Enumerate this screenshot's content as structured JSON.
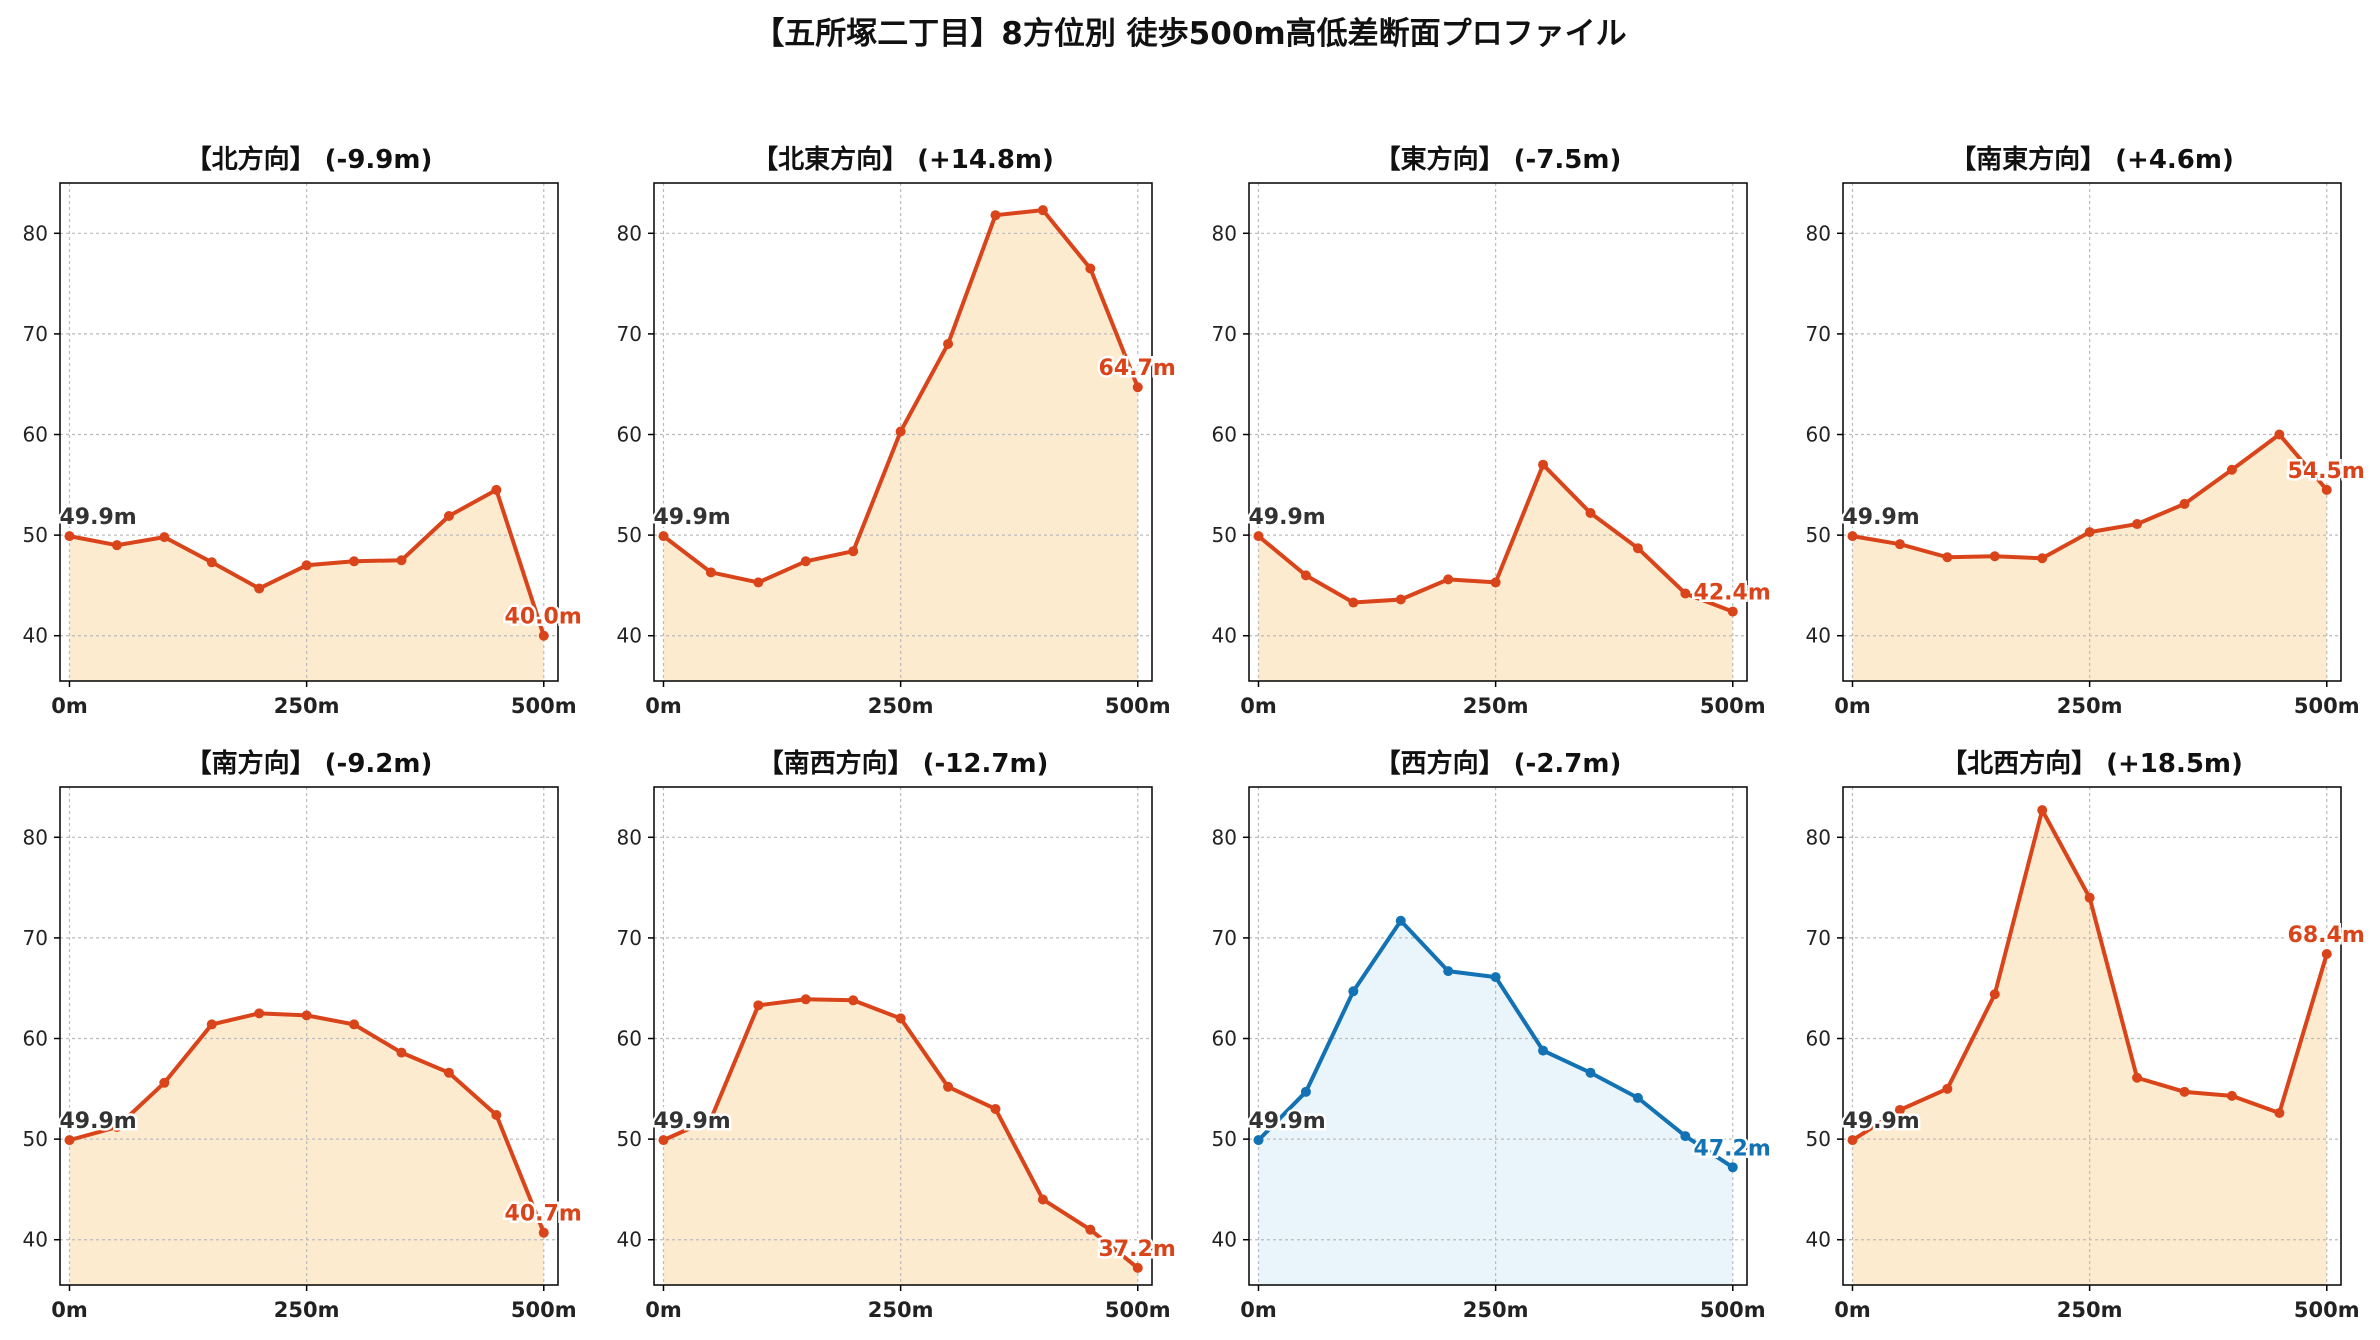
{
  "figure": {
    "title": "【五所塚二丁目】8方位別 徒歩500m高低差断面プロファイル"
  },
  "colors": {
    "uphill_line": "#D9441A",
    "uphill_fill": "#FDEBD0",
    "downhill_line": "#1272B3",
    "downhill_fill": "#E9F5FB",
    "grid": "#BBBBBB",
    "start_label": "#333333"
  },
  "chart_data": [
    {
      "type": "area",
      "title": "【北方向】 (-9.9m)",
      "x": [
        0,
        50,
        100,
        150,
        200,
        250,
        300,
        350,
        400,
        450,
        500
      ],
      "values": [
        49.9,
        49.0,
        49.8,
        47.3,
        44.7,
        47.0,
        47.4,
        47.5,
        51.9,
        54.5,
        40.0
      ],
      "start_label": "49.9m",
      "end_label": "40.0m",
      "color_scheme": "uphill",
      "xticks": [
        "0m",
        "250m",
        "500m"
      ],
      "yticks": [
        "40",
        "50",
        "60",
        "70",
        "80"
      ],
      "ylim": [
        35.5,
        85
      ],
      "xlim": [
        -10,
        515
      ],
      "grid": true
    },
    {
      "type": "area",
      "title": "【北東方向】 (+14.8m)",
      "x": [
        0,
        50,
        100,
        150,
        200,
        250,
        300,
        350,
        400,
        450,
        500
      ],
      "values": [
        49.9,
        46.3,
        45.3,
        47.4,
        48.4,
        60.3,
        69.0,
        81.8,
        82.3,
        76.5,
        64.7
      ],
      "start_label": "49.9m",
      "end_label": "64.7m",
      "color_scheme": "uphill",
      "xticks": [
        "0m",
        "250m",
        "500m"
      ],
      "yticks": [
        "40",
        "50",
        "60",
        "70",
        "80"
      ],
      "ylim": [
        35.5,
        85
      ],
      "xlim": [
        -10,
        515
      ],
      "grid": true
    },
    {
      "type": "area",
      "title": "【東方向】 (-7.5m)",
      "x": [
        0,
        50,
        100,
        150,
        200,
        250,
        300,
        350,
        400,
        450,
        500
      ],
      "values": [
        49.9,
        46.0,
        43.3,
        43.6,
        45.6,
        45.3,
        57.0,
        52.2,
        48.7,
        44.2,
        42.4
      ],
      "start_label": "49.9m",
      "end_label": "42.4m",
      "color_scheme": "uphill",
      "xticks": [
        "0m",
        "250m",
        "500m"
      ],
      "yticks": [
        "40",
        "50",
        "60",
        "70",
        "80"
      ],
      "ylim": [
        35.5,
        85
      ],
      "xlim": [
        -10,
        515
      ],
      "grid": true
    },
    {
      "type": "area",
      "title": "【南東方向】 (+4.6m)",
      "x": [
        0,
        50,
        100,
        150,
        200,
        250,
        300,
        350,
        400,
        450,
        500
      ],
      "values": [
        49.9,
        49.1,
        47.8,
        47.9,
        47.7,
        50.3,
        51.1,
        53.1,
        56.5,
        60.0,
        54.5
      ],
      "start_label": "49.9m",
      "end_label": "54.5m",
      "color_scheme": "uphill",
      "xticks": [
        "0m",
        "250m",
        "500m"
      ],
      "yticks": [
        "40",
        "50",
        "60",
        "70",
        "80"
      ],
      "ylim": [
        35.5,
        85
      ],
      "xlim": [
        -10,
        515
      ],
      "grid": true
    },
    {
      "type": "area",
      "title": "【南方向】 (-9.2m)",
      "x": [
        0,
        50,
        100,
        150,
        200,
        250,
        300,
        350,
        400,
        450,
        500
      ],
      "values": [
        49.9,
        51.2,
        55.6,
        61.4,
        62.5,
        62.3,
        61.4,
        58.6,
        56.6,
        52.4,
        40.7
      ],
      "start_label": "49.9m",
      "end_label": "40.7m",
      "color_scheme": "uphill",
      "xticks": [
        "0m",
        "250m",
        "500m"
      ],
      "yticks": [
        "40",
        "50",
        "60",
        "70",
        "80"
      ],
      "ylim": [
        35.5,
        85
      ],
      "xlim": [
        -10,
        515
      ],
      "grid": true
    },
    {
      "type": "area",
      "title": "【南西方向】 (-12.7m)",
      "x": [
        0,
        50,
        100,
        150,
        200,
        250,
        300,
        350,
        400,
        450,
        500
      ],
      "values": [
        49.9,
        52.0,
        63.3,
        63.9,
        63.8,
        62.0,
        55.2,
        53.0,
        44.0,
        41.0,
        37.2
      ],
      "start_label": "49.9m",
      "end_label": "37.2m",
      "color_scheme": "uphill",
      "xticks": [
        "0m",
        "250m",
        "500m"
      ],
      "yticks": [
        "40",
        "50",
        "60",
        "70",
        "80"
      ],
      "ylim": [
        35.5,
        85
      ],
      "xlim": [
        -10,
        515
      ],
      "grid": true
    },
    {
      "type": "area",
      "title": "【西方向】 (-2.7m)",
      "x": [
        0,
        50,
        100,
        150,
        200,
        250,
        300,
        350,
        400,
        450,
        500
      ],
      "values": [
        49.9,
        54.7,
        64.7,
        71.7,
        66.7,
        66.1,
        58.8,
        56.6,
        54.1,
        50.3,
        47.2
      ],
      "start_label": "49.9m",
      "end_label": "47.2m",
      "color_scheme": "downhill",
      "xticks": [
        "0m",
        "250m",
        "500m"
      ],
      "yticks": [
        "40",
        "50",
        "60",
        "70",
        "80"
      ],
      "ylim": [
        35.5,
        85
      ],
      "xlim": [
        -10,
        515
      ],
      "grid": true
    },
    {
      "type": "area",
      "title": "【北西方向】 (+18.5m)",
      "x": [
        0,
        50,
        100,
        150,
        200,
        250,
        300,
        350,
        400,
        450,
        500
      ],
      "values": [
        49.9,
        52.9,
        55.0,
        64.4,
        82.7,
        74.0,
        56.1,
        54.7,
        54.3,
        52.6,
        68.4
      ],
      "start_label": "49.9m",
      "end_label": "68.4m",
      "color_scheme": "uphill",
      "xticks": [
        "0m",
        "250m",
        "500m"
      ],
      "yticks": [
        "40",
        "50",
        "60",
        "70",
        "80"
      ],
      "ylim": [
        35.5,
        85
      ],
      "xlim": [
        -10,
        515
      ],
      "grid": true
    }
  ]
}
